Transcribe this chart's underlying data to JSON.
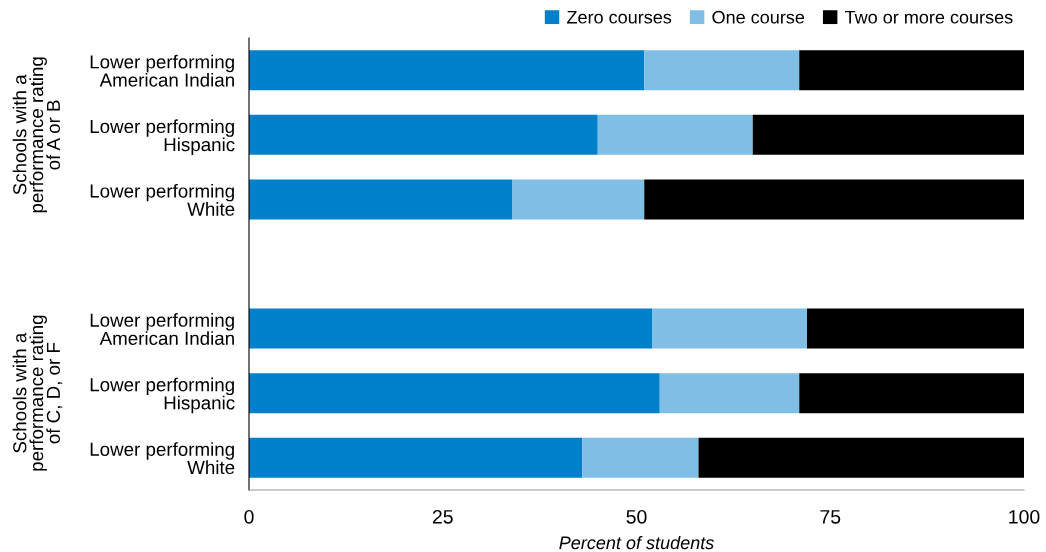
{
  "chart_data": {
    "type": "bar",
    "orientation": "horizontal",
    "stacked": true,
    "categories": [
      "Lower performing\nAmerican Indian",
      "Lower performing\nHispanic",
      "Lower performing\nWhite",
      null,
      "Lower performing\nAmerican Indian",
      "Lower performing\nHispanic",
      "Lower performing\nWhite"
    ],
    "series": [
      {
        "name": "Zero courses",
        "color": "#0080cb",
        "values": [
          51,
          45,
          34,
          null,
          52,
          53,
          43
        ]
      },
      {
        "name": "One course",
        "color": "#80bfe5",
        "values": [
          20,
          20,
          17,
          null,
          20,
          18,
          15
        ]
      },
      {
        "name": "Two or more courses",
        "color": "#000000",
        "values": [
          29,
          35,
          49,
          null,
          28,
          29,
          42
        ]
      }
    ],
    "xlabel": "Percent of students",
    "xlim": [
      0,
      100
    ],
    "xticks": [
      0,
      25,
      50,
      75,
      100
    ],
    "annotations": [
      "Schools with a\nperformance rating\nof A or B",
      "Schools with a\nperformance rating\nof C, D, or F"
    ],
    "legend": "top right",
    "grid": false
  }
}
